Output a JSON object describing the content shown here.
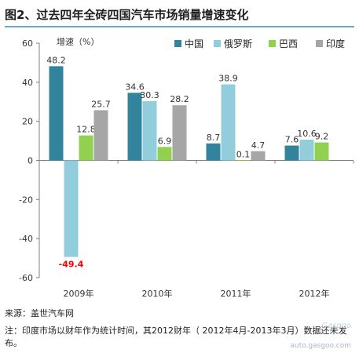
{
  "header": {
    "title": "图2、过去四年全砖四国汽车市场销量增速变化"
  },
  "footer": {
    "source": "来源：盖世汽车网",
    "note": "注：印度市场以财年作为统计时间，其2012财年（ 2012年4月-2013年3月）数据还未发布。"
  },
  "watermark": {
    "logo_text": "Gasgoo",
    "url": "auto.gasgoo.com"
  },
  "chart_data": {
    "type": "bar",
    "title": "图2、过去四年全砖四国汽车市场销量增速变化",
    "ylabel": "增速（%）",
    "xlabel": "",
    "ylim": [
      -60,
      60
    ],
    "yticks": [
      60,
      40,
      20,
      0,
      -20,
      -40,
      -60
    ],
    "categories": [
      "2009年",
      "2010年",
      "2011年",
      "2012年"
    ],
    "legend_position": "top-right",
    "grid": false,
    "series": [
      {
        "name": "中国",
        "color": "#31849b",
        "values": [
          48.2,
          34.6,
          8.7,
          7.6
        ]
      },
      {
        "name": "俄罗斯",
        "color": "#92cddc",
        "values": [
          -49.4,
          30.3,
          38.9,
          10.6
        ]
      },
      {
        "name": "巴西",
        "color": "#92d050",
        "values": [
          12.8,
          6.9,
          0.1,
          9.2
        ]
      },
      {
        "name": "印度",
        "color": "#a6a6a6",
        "values": [
          25.7,
          28.2,
          4.7,
          null
        ]
      }
    ],
    "labels": [
      [
        "48.2",
        "34.6",
        "8.7",
        "7.6"
      ],
      [
        "-49.4",
        "30.3",
        "38.9",
        "10.6"
      ],
      [
        "12.8",
        "6.9",
        "0.1",
        "9.2"
      ],
      [
        "25.7",
        "28.2",
        "4.7",
        ""
      ]
    ],
    "negative_label_color": "#ff0000"
  }
}
